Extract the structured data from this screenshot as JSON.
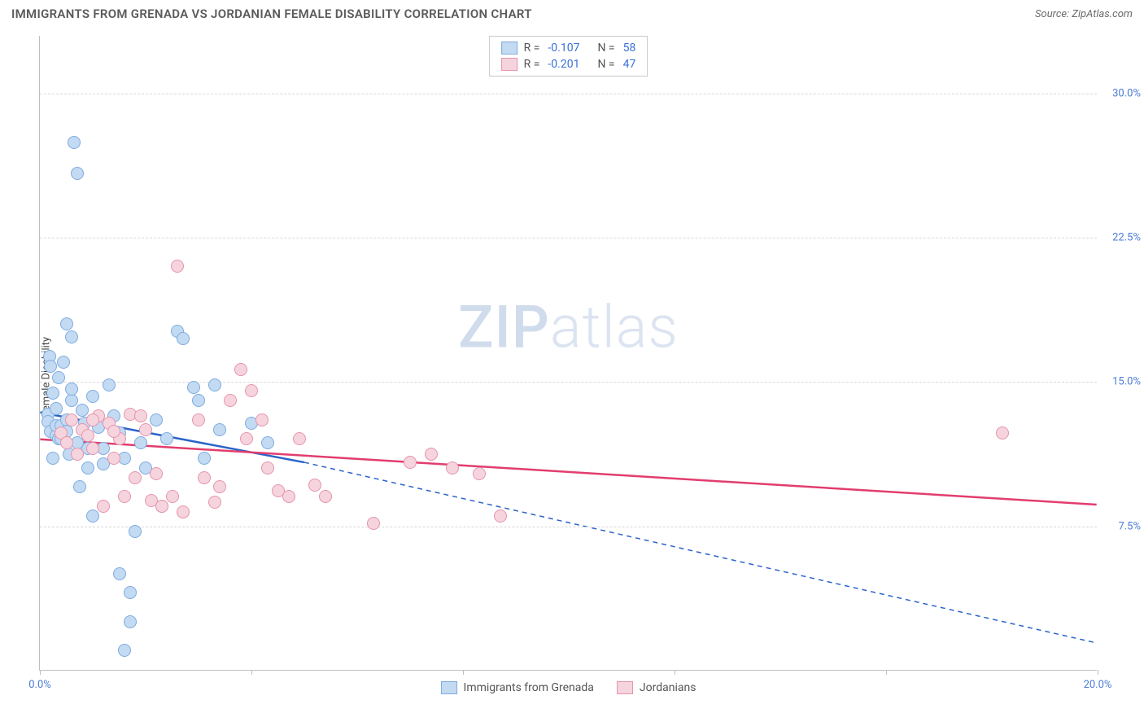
{
  "header": {
    "title": "IMMIGRANTS FROM GRENADA VS JORDANIAN FEMALE DISABILITY CORRELATION CHART",
    "source": "Source: ZipAtlas.com"
  },
  "watermark": {
    "bold": "ZIP",
    "thin": "atlas"
  },
  "chart": {
    "type": "scatter",
    "ylabel": "Female Disability",
    "background_color": "#ffffff",
    "grid_color": "#d8d8d8",
    "axis_color": "#bfbfbf",
    "tick_label_color": "#4b7bd6",
    "xlim": [
      0,
      20
    ],
    "ylim": [
      0,
      33
    ],
    "xticks": [
      0,
      4,
      8,
      12,
      16,
      20
    ],
    "xtick_labels": [
      "0.0%",
      "",
      "",
      "",
      "",
      "20.0%"
    ],
    "yticks": [
      7.5,
      15.0,
      22.5,
      30.0
    ],
    "ytick_labels": [
      "7.5%",
      "15.0%",
      "22.5%",
      "30.0%"
    ],
    "marker_size": 16,
    "series": [
      {
        "name": "Immigrants from Grenada",
        "fill": "#c3daf3",
        "stroke": "#7eabdf",
        "line_color": "#2b63c9",
        "line_width": 2.5,
        "R": "-0.107",
        "N": "58",
        "trend": {
          "x1": 0,
          "y1": 13.4,
          "x2": 5.0,
          "y2": 10.8,
          "dash_x2": 20,
          "dash_y2": 1.4
        },
        "points": [
          [
            0.15,
            13.3
          ],
          [
            0.15,
            12.9
          ],
          [
            0.18,
            16.3
          ],
          [
            0.2,
            15.8
          ],
          [
            0.2,
            12.4
          ],
          [
            0.25,
            14.4
          ],
          [
            0.25,
            11.0
          ],
          [
            0.3,
            13.6
          ],
          [
            0.3,
            12.2
          ],
          [
            0.3,
            12.7
          ],
          [
            0.35,
            12.0
          ],
          [
            0.35,
            15.2
          ],
          [
            0.4,
            12.7
          ],
          [
            0.4,
            12.0
          ],
          [
            0.45,
            16.0
          ],
          [
            0.5,
            13.0
          ],
          [
            0.5,
            12.4
          ],
          [
            0.55,
            11.2
          ],
          [
            0.6,
            14.0
          ],
          [
            0.6,
            17.3
          ],
          [
            0.65,
            27.4
          ],
          [
            0.7,
            25.8
          ],
          [
            0.75,
            9.5
          ],
          [
            0.8,
            13.5
          ],
          [
            0.85,
            12.8
          ],
          [
            0.9,
            11.5
          ],
          [
            1.0,
            14.2
          ],
          [
            1.0,
            8.0
          ],
          [
            1.1,
            12.6
          ],
          [
            1.2,
            10.7
          ],
          [
            1.2,
            11.5
          ],
          [
            1.3,
            14.8
          ],
          [
            1.4,
            13.2
          ],
          [
            1.5,
            12.3
          ],
          [
            1.5,
            5.0
          ],
          [
            1.6,
            11.0
          ],
          [
            1.6,
            1.0
          ],
          [
            1.7,
            2.5
          ],
          [
            1.7,
            4.0
          ],
          [
            1.8,
            7.2
          ],
          [
            1.9,
            11.8
          ],
          [
            2.0,
            10.5
          ],
          [
            2.2,
            13.0
          ],
          [
            2.3,
            8.5
          ],
          [
            2.4,
            12.0
          ],
          [
            2.6,
            17.6
          ],
          [
            2.7,
            17.2
          ],
          [
            2.9,
            14.7
          ],
          [
            3.0,
            14.0
          ],
          [
            3.1,
            11.0
          ],
          [
            3.3,
            14.8
          ],
          [
            3.4,
            12.5
          ],
          [
            4.0,
            12.8
          ],
          [
            4.3,
            11.8
          ],
          [
            0.9,
            10.5
          ],
          [
            0.5,
            18.0
          ],
          [
            0.6,
            14.6
          ],
          [
            0.7,
            11.8
          ]
        ]
      },
      {
        "name": "Jordanians",
        "fill": "#f6d4dd",
        "stroke": "#e594ad",
        "line_color": "#e23d6e",
        "line_width": 2.5,
        "R": "-0.201",
        "N": "47",
        "trend": {
          "x1": 0,
          "y1": 12.0,
          "x2": 20,
          "y2": 8.6
        },
        "points": [
          [
            0.4,
            12.3
          ],
          [
            0.5,
            11.8
          ],
          [
            0.6,
            13.0
          ],
          [
            0.7,
            11.2
          ],
          [
            0.8,
            12.5
          ],
          [
            0.9,
            12.2
          ],
          [
            1.0,
            11.5
          ],
          [
            1.1,
            13.2
          ],
          [
            1.2,
            8.5
          ],
          [
            1.3,
            12.8
          ],
          [
            1.4,
            11.0
          ],
          [
            1.5,
            12.0
          ],
          [
            1.6,
            9.0
          ],
          [
            1.7,
            13.3
          ],
          [
            1.8,
            10.0
          ],
          [
            1.9,
            13.2
          ],
          [
            2.0,
            12.5
          ],
          [
            2.1,
            8.8
          ],
          [
            2.2,
            10.2
          ],
          [
            2.3,
            8.5
          ],
          [
            2.5,
            9.0
          ],
          [
            2.6,
            21.0
          ],
          [
            2.7,
            8.2
          ],
          [
            3.0,
            13.0
          ],
          [
            3.1,
            10.0
          ],
          [
            3.3,
            8.7
          ],
          [
            3.4,
            9.5
          ],
          [
            3.6,
            14.0
          ],
          [
            3.8,
            15.6
          ],
          [
            3.9,
            12.0
          ],
          [
            4.0,
            14.5
          ],
          [
            4.2,
            13.0
          ],
          [
            4.3,
            10.5
          ],
          [
            4.5,
            9.3
          ],
          [
            4.7,
            9.0
          ],
          [
            4.9,
            12.0
          ],
          [
            5.2,
            9.6
          ],
          [
            5.4,
            9.0
          ],
          [
            6.3,
            7.6
          ],
          [
            7.0,
            10.8
          ],
          [
            7.4,
            11.2
          ],
          [
            7.8,
            10.5
          ],
          [
            8.3,
            10.2
          ],
          [
            8.7,
            8.0
          ],
          [
            18.2,
            12.3
          ],
          [
            1.0,
            13.0
          ],
          [
            1.4,
            12.4
          ]
        ]
      }
    ],
    "legend_bottom": [
      {
        "label": "Immigrants from Grenada",
        "fill": "#c3daf3",
        "stroke": "#7eabdf"
      },
      {
        "label": "Jordanians",
        "fill": "#f6d4dd",
        "stroke": "#e594ad"
      }
    ]
  }
}
